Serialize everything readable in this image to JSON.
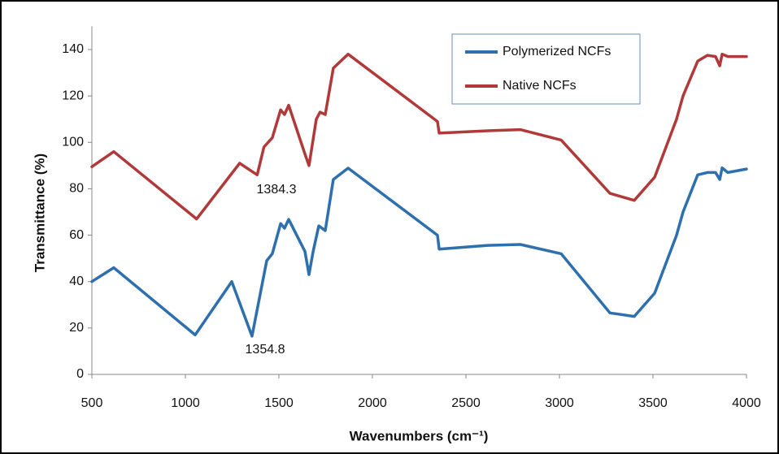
{
  "chart_data": {
    "type": "line",
    "xlabel": "Wavenumbers (cm⁻¹)",
    "ylabel": "Transmittance (%)",
    "xlim": [
      500,
      4000
    ],
    "xticks": [
      500,
      1000,
      1500,
      2000,
      2500,
      3000,
      3500,
      4000
    ],
    "ylim": [
      0,
      150
    ],
    "yticks": [
      0,
      20,
      40,
      60,
      80,
      100,
      120,
      140
    ],
    "grid": false,
    "legend": "upper right",
    "series": [
      {
        "name": "Polymerized NCFs",
        "color": "#2e6fad",
        "x": [
          500,
          617,
          1052,
          1248,
          1356,
          1435,
          1465,
          1509,
          1530,
          1552,
          1639,
          1661,
          1683,
          1713,
          1748,
          1791,
          1870,
          2348,
          2357,
          2617,
          2791,
          3009,
          3270,
          3400,
          3509,
          3626,
          3661,
          3739,
          3791,
          3835,
          3857,
          3870,
          3900,
          4000
        ],
        "values": [
          40,
          46,
          17,
          40,
          16.5,
          49,
          52,
          65,
          63,
          66.8,
          53,
          43,
          53,
          64,
          62,
          84,
          88.9,
          60,
          54,
          55.6,
          56,
          52,
          26.5,
          25,
          35,
          60,
          70,
          86,
          87,
          87,
          84,
          89,
          87,
          88.5
        ]
      },
      {
        "name": "Native NCFs",
        "color": "#b03a3a",
        "x": [
          500,
          617,
          1060,
          1290,
          1384,
          1420,
          1465,
          1509,
          1530,
          1552,
          1639,
          1661,
          1700,
          1720,
          1748,
          1791,
          1870,
          2348,
          2357,
          2617,
          2791,
          3009,
          3270,
          3400,
          3509,
          3626,
          3661,
          3739,
          3791,
          3835,
          3857,
          3870,
          3900,
          4000
        ],
        "values": [
          89.5,
          96,
          67,
          91,
          86,
          98,
          102,
          114,
          112,
          116,
          95,
          90,
          110,
          113,
          112,
          132,
          138,
          109,
          104,
          105,
          105.5,
          101,
          78,
          75,
          85,
          110,
          120,
          135,
          137.5,
          137,
          133,
          138,
          137,
          137
        ]
      }
    ],
    "annotations": [
      "1384.3",
      "1354.8"
    ]
  }
}
